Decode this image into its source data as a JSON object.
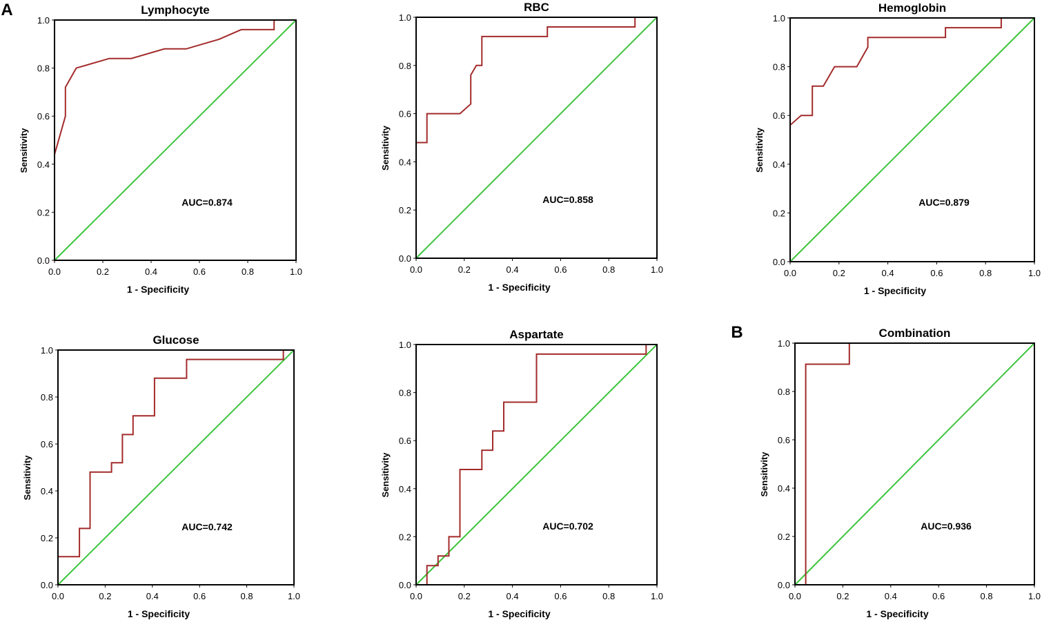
{
  "panel_labels": [
    "A",
    "B"
  ],
  "colors": {
    "roc": "#a32a2a",
    "reference": "#3cc43c",
    "axis": "#000000"
  },
  "chart_data": [
    {
      "type": "line",
      "title": "Lymphocyte",
      "xlabel": "1 - Specificity",
      "ylabel": "Sensitivity",
      "xlim": [
        0,
        1
      ],
      "ylim": [
        0,
        1
      ],
      "ticks": [
        "0.0",
        "0.2",
        "0.4",
        "0.6",
        "0.8",
        "1.0"
      ],
      "annotation": "AUC=0.874",
      "series": [
        {
          "name": "ROC",
          "x": [
            0,
            0,
            0.045,
            0.045,
            0.09,
            0.227,
            0.318,
            0.455,
            0.545,
            0.682,
            0.773,
            0.909,
            0.909,
            1.0
          ],
          "y": [
            0,
            0.44,
            0.6,
            0.72,
            0.8,
            0.84,
            0.84,
            0.88,
            0.88,
            0.92,
            0.96,
            0.96,
            1.0,
            1.0
          ]
        },
        {
          "name": "Reference",
          "x": [
            0,
            1
          ],
          "y": [
            0,
            1
          ]
        }
      ]
    },
    {
      "type": "line",
      "title": "RBC",
      "xlabel": "1 - Specificity",
      "ylabel": "Sensitivity",
      "xlim": [
        0,
        1
      ],
      "ylim": [
        0,
        1
      ],
      "ticks": [
        "0.0",
        "0.2",
        "0.4",
        "0.6",
        "0.8",
        "1.0"
      ],
      "annotation": "AUC=0.858",
      "series": [
        {
          "name": "ROC",
          "x": [
            0,
            0,
            0.045,
            0.045,
            0.182,
            0.227,
            0.227,
            0.25,
            0.273,
            0.273,
            0.545,
            0.545,
            0.909,
            0.909,
            1.0
          ],
          "y": [
            0,
            0.48,
            0.48,
            0.6,
            0.6,
            0.64,
            0.76,
            0.8,
            0.8,
            0.92,
            0.92,
            0.96,
            0.96,
            1.0,
            1.0
          ]
        },
        {
          "name": "Reference",
          "x": [
            0,
            1
          ],
          "y": [
            0,
            1
          ]
        }
      ]
    },
    {
      "type": "line",
      "title": "Hemoglobin",
      "xlabel": "1 - Specificity",
      "ylabel": "Sensitivity",
      "xlim": [
        0,
        1
      ],
      "ylim": [
        0,
        1
      ],
      "ticks": [
        "0.0",
        "0.2",
        "0.4",
        "0.6",
        "0.8",
        "1.0"
      ],
      "annotation": "AUC=0.879",
      "series": [
        {
          "name": "ROC",
          "x": [
            0,
            0,
            0.045,
            0.091,
            0.091,
            0.136,
            0.182,
            0.273,
            0.318,
            0.318,
            0.636,
            0.636,
            0.864,
            0.864,
            1.0
          ],
          "y": [
            0,
            0.56,
            0.6,
            0.6,
            0.72,
            0.72,
            0.8,
            0.8,
            0.88,
            0.92,
            0.92,
            0.96,
            0.96,
            1.0,
            1.0
          ]
        },
        {
          "name": "Reference",
          "x": [
            0,
            1
          ],
          "y": [
            0,
            1
          ]
        }
      ]
    },
    {
      "type": "line",
      "title": "Glucose",
      "xlabel": "1 - Specificity",
      "ylabel": "Sensitivity",
      "xlim": [
        0,
        1
      ],
      "ylim": [
        0,
        1
      ],
      "ticks": [
        "0.0",
        "0.2",
        "0.4",
        "0.6",
        "0.8",
        "1.0"
      ],
      "annotation": "AUC=0.742",
      "series": [
        {
          "name": "ROC",
          "x": [
            0,
            0,
            0.091,
            0.091,
            0.136,
            0.136,
            0.227,
            0.227,
            0.273,
            0.273,
            0.318,
            0.318,
            0.409,
            0.409,
            0.545,
            0.545,
            0.955,
            0.955,
            1.0
          ],
          "y": [
            0,
            0.12,
            0.12,
            0.24,
            0.24,
            0.48,
            0.48,
            0.52,
            0.52,
            0.64,
            0.64,
            0.72,
            0.72,
            0.88,
            0.88,
            0.96,
            0.96,
            1.0,
            1.0
          ]
        },
        {
          "name": "Reference",
          "x": [
            0,
            1
          ],
          "y": [
            0,
            1
          ]
        }
      ]
    },
    {
      "type": "line",
      "title": "Aspartate",
      "xlabel": "1 - Specificity",
      "ylabel": "Sensitivity",
      "xlim": [
        0,
        1
      ],
      "ylim": [
        0,
        1
      ],
      "ticks": [
        "0.0",
        "0.2",
        "0.4",
        "0.6",
        "0.8",
        "1.0"
      ],
      "annotation": "AUC=0.702",
      "series": [
        {
          "name": "ROC",
          "x": [
            0.045,
            0.045,
            0.091,
            0.091,
            0.136,
            0.136,
            0.182,
            0.182,
            0.273,
            0.273,
            0.318,
            0.318,
            0.364,
            0.364,
            0.5,
            0.5,
            0.955,
            0.955,
            1.0
          ],
          "y": [
            0,
            0.08,
            0.08,
            0.12,
            0.12,
            0.2,
            0.2,
            0.48,
            0.48,
            0.56,
            0.56,
            0.64,
            0.64,
            0.76,
            0.76,
            0.96,
            0.96,
            1.0,
            1.0
          ]
        },
        {
          "name": "Reference",
          "x": [
            0,
            1
          ],
          "y": [
            0,
            1
          ]
        }
      ]
    },
    {
      "type": "line",
      "title": "Combination",
      "xlabel": "1 - Specificity",
      "ylabel": "Sensitivity",
      "xlim": [
        0,
        1
      ],
      "ylim": [
        0,
        1
      ],
      "ticks": [
        "0.0",
        "0.2",
        "0.4",
        "0.6",
        "0.8",
        "1.0"
      ],
      "annotation": "AUC=0.936",
      "series": [
        {
          "name": "ROC",
          "x": [
            0.045,
            0.045,
            0.227,
            0.227,
            1.0
          ],
          "y": [
            0,
            0.913,
            0.913,
            1.0,
            1.0
          ]
        },
        {
          "name": "Reference",
          "x": [
            0,
            1
          ],
          "y": [
            0,
            1
          ]
        }
      ]
    }
  ]
}
